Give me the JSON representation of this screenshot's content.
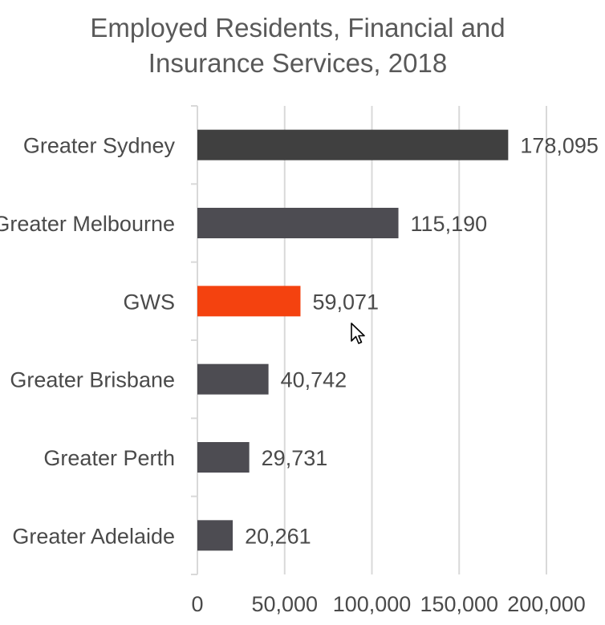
{
  "chart_data": {
    "type": "bar",
    "orientation": "horizontal",
    "title": "Employed Residents, Financial and Insurance Services, 2018",
    "title_lines": [
      "Employed Residents, Financial and",
      "Insurance Services, 2018"
    ],
    "categories": [
      "Greater Sydney",
      "Greater Melbourne",
      "GWS",
      "Greater Brisbane",
      "Greater Perth",
      "Greater Adelaide"
    ],
    "values": [
      178095,
      115190,
      59071,
      40742,
      29731,
      20261
    ],
    "value_labels": [
      "178,095",
      "115,190",
      "59,071",
      "40,742",
      "29,731",
      "20,261"
    ],
    "bar_colors": [
      "#404040",
      "#4d4c52",
      "#f4420f",
      "#4d4c52",
      "#4d4c52",
      "#4d4c52"
    ],
    "xlim": [
      0,
      200000
    ],
    "x_ticks": [
      0,
      50000,
      100000,
      150000,
      200000
    ],
    "x_tick_labels": [
      "0",
      "50,000",
      "100,000",
      "150,000",
      "200,000"
    ],
    "xlabel": "",
    "ylabel": "",
    "grid": true,
    "legend": "none",
    "highlight_color": "#f4420f",
    "bar_color": "#4d4c52"
  },
  "cursor_icon": "mouse-pointer-icon"
}
